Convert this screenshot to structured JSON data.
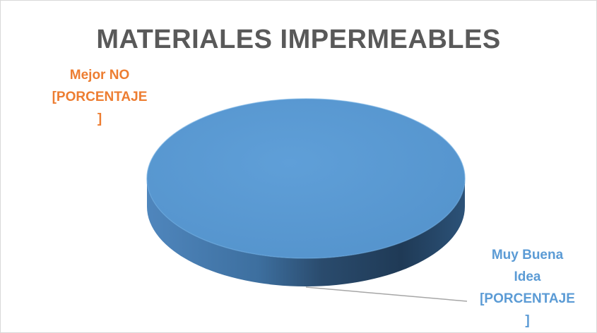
{
  "chart_data": {
    "type": "pie",
    "style": "3d",
    "title": "MATERIALES IMPERMEABLES",
    "slices": [
      {
        "name": "Mejor NO",
        "value": 0,
        "label_lines": [
          "Mejor NO",
          "[PORCENTAJE",
          "]"
        ],
        "color": "#ed7d31"
      },
      {
        "name": "Muy Buena Idea",
        "value": 100,
        "label_lines": [
          "Muy Buena",
          "Idea",
          "[PORCENTAJE",
          "]"
        ],
        "color": "#5b9bd5"
      }
    ],
    "legend": "none"
  },
  "colors": {
    "title": "#595959",
    "leader_line": "#a6a6a6",
    "top_face": "#5b9bd5",
    "side_dark": "#1f3a56"
  }
}
